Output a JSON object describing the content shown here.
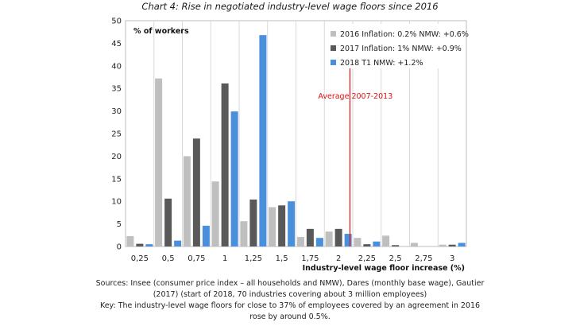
{
  "chart_data": {
    "type": "bar",
    "title": "Chart 4: Rise in negotiated industry-level wage floors since 2016",
    "ylabel": "% of workers",
    "xlabel": "Industry-level wage floor increase (%)",
    "ylim": [
      0,
      50
    ],
    "yticks": [
      "0",
      "5",
      "10",
      "15",
      "20",
      "25",
      "30",
      "35",
      "40",
      "45",
      "50"
    ],
    "categories": [
      "0,25",
      "0,5",
      "0,75",
      "1",
      "1,25",
      "1,5",
      "1,75",
      "2",
      "2,25",
      "2,5",
      "2,75",
      "3"
    ],
    "series": [
      {
        "name": "2016",
        "legend": "2016 Inflation: 0.2% NMW: +0.6%",
        "color": "#bfbfbf",
        "values": [
          2.3,
          37.2,
          20.0,
          14.4,
          5.6,
          8.7,
          2.1,
          3.3,
          1.9,
          2.4,
          0.8,
          0.4
        ]
      },
      {
        "name": "2017",
        "legend": "2017 Inflation: 1% NMW: +0.9%",
        "color": "#595959",
        "values": [
          0.6,
          10.6,
          23.9,
          36.1,
          10.4,
          9.1,
          3.9,
          3.9,
          0.5,
          0.3,
          0.0,
          0.4
        ]
      },
      {
        "name": "2018 T1",
        "legend": "2018 T1          NMW: +1.2%",
        "color": "#4a8fdc",
        "values": [
          0.5,
          1.3,
          4.6,
          29.9,
          46.8,
          10.0,
          1.9,
          2.8,
          1.1,
          0.0,
          0.0,
          0.8
        ]
      }
    ],
    "annotation": {
      "label": "Average  2007-2013",
      "x_value": 2.1,
      "color": "#dd1f1f"
    },
    "grid": "vertical",
    "legend_position": "top-right"
  },
  "footer": {
    "sources": "Sources: Insee (consumer price index – all households and NMW), Dares (monthly base wage), Gautier (2017) (start of 2018, 70 industries covering about 3 million employees)",
    "key": "Key: The industry-level wage floors for close to 37% of employees covered by an agreement in 2016 rose by around 0.5%."
  }
}
